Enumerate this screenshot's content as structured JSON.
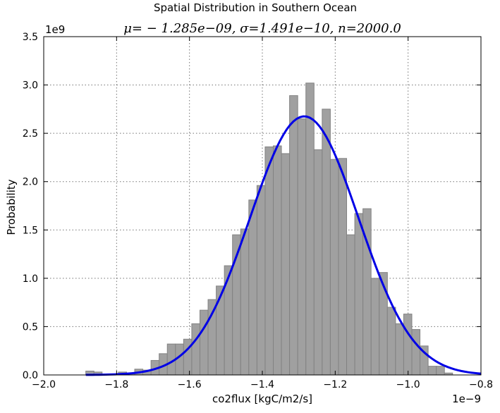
{
  "chart_data": {
    "type": "bar",
    "title": "Spatial Distribution in Southern Ocean",
    "subtitle": "μ= − 1.285e−09,  σ=1.491e−10,  n=2000.0",
    "xlabel": "co2flux [kgC/m2/s]",
    "ylabel": "Probability",
    "x_exponent": "1e−9",
    "y_exponent": "1e9",
    "xlim": [
      -2.0,
      -0.8
    ],
    "ylim": [
      0.0,
      3.5
    ],
    "x_ticks": [
      "−2.0",
      "−1.8",
      "−1.6",
      "−1.4",
      "−1.2",
      "−1.0",
      "−0.8"
    ],
    "y_ticks": [
      "0.0",
      "0.5",
      "1.0",
      "1.5",
      "2.0",
      "2.5",
      "3.0",
      "3.5"
    ],
    "x_tick_values": [
      -2.0,
      -1.8,
      -1.6,
      -1.4,
      -1.2,
      -1.0,
      -0.8
    ],
    "y_tick_values": [
      0.0,
      0.5,
      1.0,
      1.5,
      2.0,
      2.5,
      3.0,
      3.5
    ],
    "grid": true,
    "bin_start": -1.8845,
    "bin_width": 0.02237,
    "values": [
      0.04,
      0.03,
      0.0,
      0.0,
      0.03,
      0.02,
      0.06,
      0.05,
      0.15,
      0.22,
      0.32,
      0.32,
      0.37,
      0.53,
      0.67,
      0.78,
      0.92,
      1.13,
      1.45,
      1.51,
      1.81,
      1.96,
      2.36,
      2.37,
      2.29,
      2.89,
      2.65,
      3.02,
      2.33,
      2.75,
      2.23,
      2.24,
      1.45,
      1.67,
      1.72,
      1.0,
      1.06,
      0.7,
      0.53,
      0.63,
      0.47,
      0.3,
      0.09,
      0.09,
      0.02
    ],
    "series": [
      {
        "type": "histogram",
        "color": "#a0a0a0",
        "edge_color": "#828282"
      },
      {
        "type": "normal-pdf",
        "color": "#0000e6",
        "mean": -1.285,
        "std": 0.1491
      }
    ]
  }
}
